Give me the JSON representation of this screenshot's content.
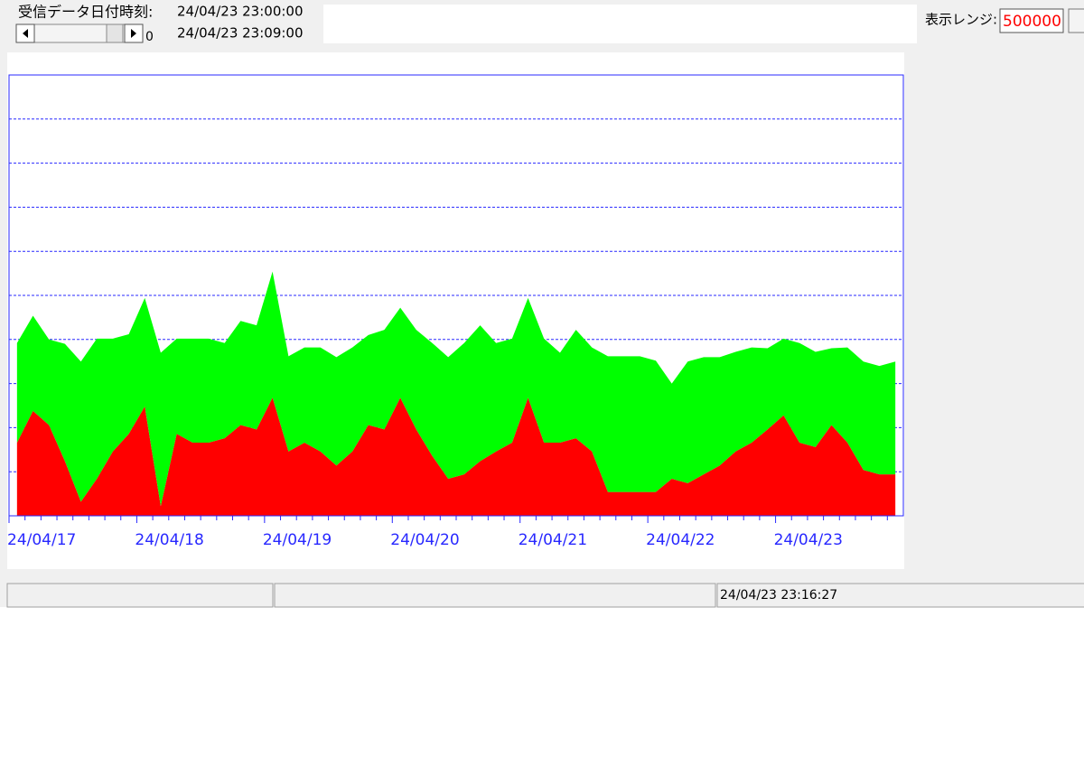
{
  "ui": {
    "date_label": "受信データ日付時刻:",
    "start_time": "24/04/23 23:00:00",
    "end_time": "24/04/23 23:09:00",
    "scroll_value": "0",
    "range_label": "表示レンジ:",
    "range_value": "500000",
    "status_time": "24/04/23 23:16:27"
  },
  "chart_data": {
    "type": "stacked-area",
    "categories": [
      "24/04/17",
      null,
      null,
      null,
      null,
      null,
      null,
      null,
      "24/04/18",
      null,
      null,
      null,
      null,
      null,
      null,
      null,
      "24/04/19",
      null,
      null,
      null,
      null,
      null,
      null,
      null,
      "24/04/20",
      null,
      null,
      null,
      null,
      null,
      null,
      null,
      "24/04/21",
      null,
      null,
      null,
      null,
      null,
      null,
      null,
      "24/04/22",
      null,
      null,
      null,
      null,
      null,
      null,
      null,
      "24/04/23",
      null,
      null,
      null,
      null,
      null,
      null,
      null
    ],
    "series": [
      {
        "color": "#ff0000",
        "values": [
          83000,
          119000,
          103000,
          62000,
          16000,
          42000,
          73000,
          93000,
          124000,
          11000,
          93000,
          83000,
          83000,
          88000,
          103000,
          98000,
          134000,
          73000,
          83000,
          73000,
          57000,
          73000,
          103000,
          98000,
          134000,
          98000,
          68000,
          42000,
          47000,
          62000,
          73000,
          83000,
          134000,
          83000,
          83000,
          88000,
          73000,
          27000,
          27000,
          27000,
          27000,
          42000,
          37000,
          47000,
          57000,
          73000,
          83000,
          98000,
          114000,
          83000,
          78000,
          103000,
          83000,
          52000,
          47000,
          47000
        ]
      },
      {
        "color": "#00ff00",
        "values": [
          113000,
          108000,
          97000,
          133000,
          159000,
          159000,
          128000,
          113000,
          123000,
          174000,
          108000,
          118000,
          118000,
          108000,
          118000,
          118000,
          143000,
          108000,
          108000,
          118000,
          123000,
          118000,
          102000,
          113000,
          102000,
          113000,
          128000,
          138000,
          149000,
          154000,
          123000,
          118000,
          113000,
          118000,
          102000,
          123000,
          118000,
          154000,
          154000,
          154000,
          149000,
          108000,
          138000,
          133000,
          123000,
          113000,
          108000,
          92000,
          87000,
          113000,
          108000,
          87000,
          108000,
          123000,
          123000,
          128000
        ]
      }
    ],
    "ylim": [
      0,
      500000
    ],
    "yticks": [
      0,
      50000,
      100000,
      150000,
      200000,
      250000,
      300000,
      350000,
      400000,
      450000,
      500000
    ],
    "grid": true,
    "axis_color": "#2828ff"
  }
}
